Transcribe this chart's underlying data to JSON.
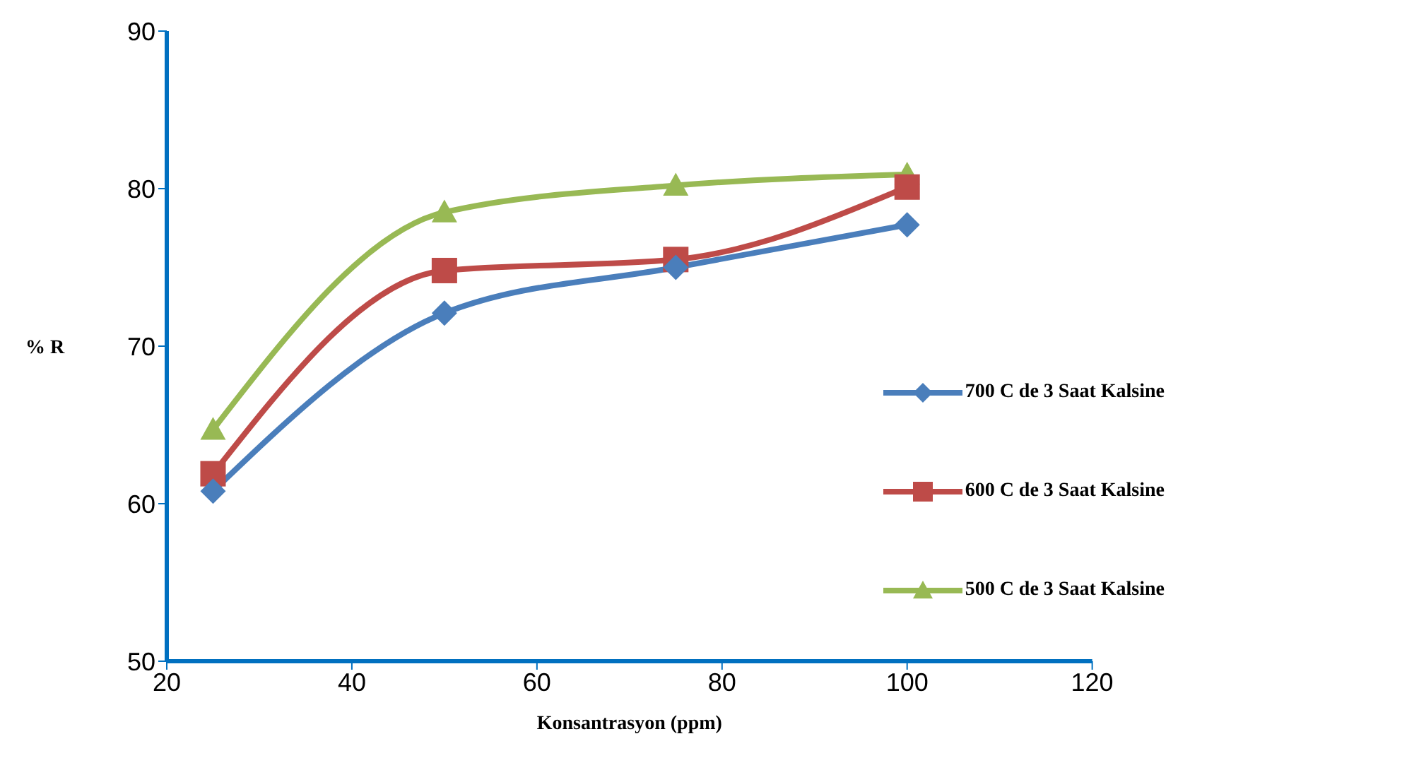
{
  "chart_data": {
    "type": "line",
    "xlabel": "Konsantrasyon (ppm)",
    "ylabel": "% R",
    "x": [
      25,
      50,
      75,
      100
    ],
    "series": [
      {
        "name": "700 C de 3 Saat Kalsine",
        "color": "#4a7ebb",
        "values": [
          60.8,
          72.1,
          75.0,
          77.7
        ],
        "marker": "diamond"
      },
      {
        "name": "600 C de 3 Saat Kalsine",
        "color": "#be4b48",
        "values": [
          61.9,
          74.8,
          75.5,
          80.1
        ],
        "marker": "square"
      },
      {
        "name": "500 C de 3 Saat Kalsine",
        "color": "#98b954",
        "values": [
          64.7,
          78.5,
          80.2,
          80.9
        ],
        "marker": "triangle"
      }
    ],
    "xlim": [
      20,
      120
    ],
    "xticks": [
      20,
      40,
      60,
      80,
      100,
      120
    ],
    "ylim": [
      50,
      90
    ],
    "yticks": [
      50,
      60,
      70,
      80,
      90
    ],
    "grid": false,
    "legend": "right",
    "line_style": "solid"
  }
}
